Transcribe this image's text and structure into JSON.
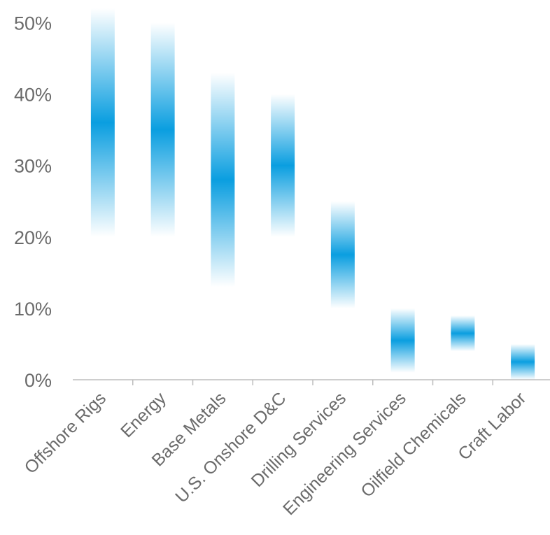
{
  "chart_data": {
    "type": "bar",
    "subtype": "floating-range",
    "title": "",
    "xlabel": "",
    "ylabel": "",
    "ylim": [
      0,
      52
    ],
    "yticks": [
      0,
      10,
      20,
      30,
      40,
      50
    ],
    "ytick_labels": [
      "0%",
      "10%",
      "20%",
      "30%",
      "40%",
      "50%"
    ],
    "grid": false,
    "legend": "none",
    "bar_color": "#0a9ee0",
    "bar_fade_color": "#ffffff",
    "axis_color": "#bdbdbd",
    "categories": [
      "Offshore Rigs",
      "Energy",
      "Base Metals",
      "U.S. Onshore D&C",
      "Drilling Services",
      "Engineering Services",
      "Oilfield Chemicals",
      "Craft Labor"
    ],
    "ranges": [
      {
        "low": 20,
        "high": 52
      },
      {
        "low": 20,
        "high": 50
      },
      {
        "low": 13,
        "high": 43
      },
      {
        "low": 20,
        "high": 40
      },
      {
        "low": 10,
        "high": 25
      },
      {
        "low": 1,
        "high": 10
      },
      {
        "low": 4,
        "high": 9
      },
      {
        "low": 0,
        "high": 5
      }
    ]
  }
}
